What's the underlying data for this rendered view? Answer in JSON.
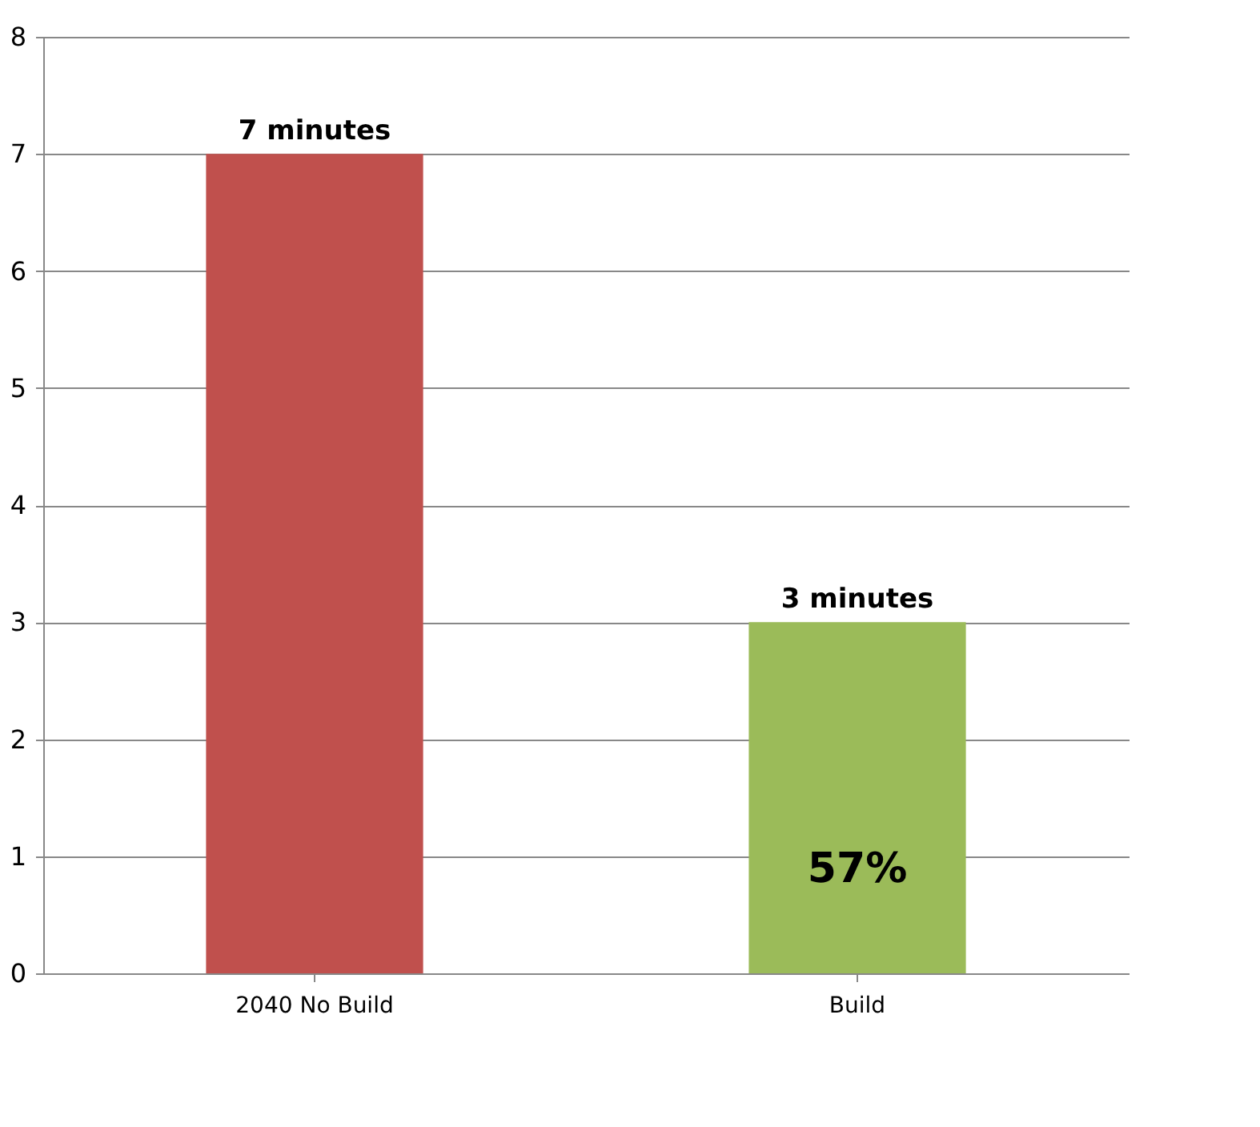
{
  "chart_data": {
    "type": "bar",
    "categories": [
      "2040 No Build",
      "Build"
    ],
    "values": [
      7,
      3
    ],
    "colors": [
      "#c0504d",
      "#9bbb59"
    ],
    "value_labels": [
      "7 minutes",
      "3 minutes"
    ],
    "annotations": [
      "57%"
    ],
    "ylim": [
      0,
      8
    ],
    "yticks": [
      0,
      1,
      2,
      3,
      4,
      5,
      6,
      7,
      8
    ],
    "grid": "y"
  }
}
